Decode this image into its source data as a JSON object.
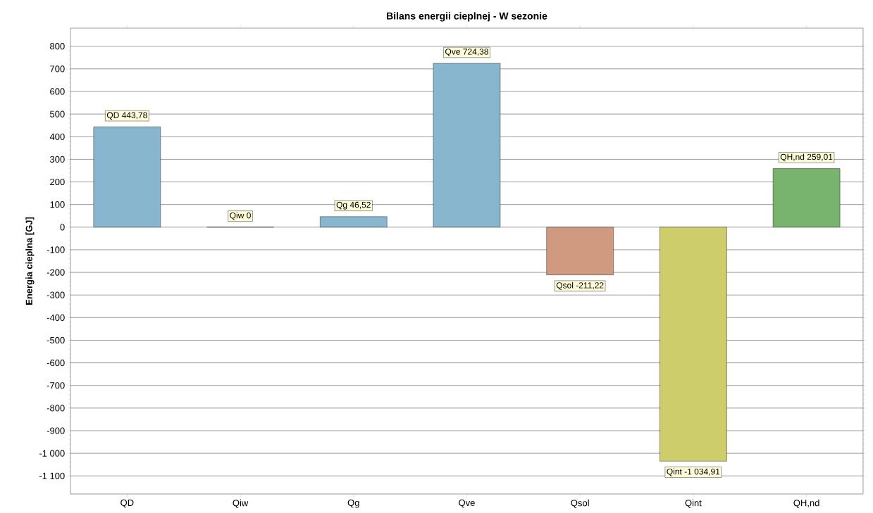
{
  "chart_data": {
    "type": "bar",
    "title": "Bilans energii cieplnej - W sezonie",
    "ylabel": "Energia cieplna [GJ]",
    "categories": [
      "QD",
      "Qiw",
      "Qg",
      "Qve",
      "Qsol",
      "Qint",
      "QH,nd"
    ],
    "values": [
      443.78,
      0,
      46.52,
      724.38,
      -211.22,
      -1034.91,
      259.01
    ],
    "colors": [
      "#88b6cf",
      "#88b6cf",
      "#88b6cf",
      "#88b6cf",
      "#cf9a80",
      "#cdcd6c",
      "#78b46e"
    ],
    "value_labels": [
      "QD 443,78",
      "Qiw 0",
      "Qg 46,52",
      "Qve 724,38",
      "Qsol -211,22",
      "Qint -1 034,91",
      "QH,nd 259,01"
    ],
    "ylim": [
      -1180,
      880
    ],
    "yticks": [
      {
        "value": -1100,
        "label": "-1 100"
      },
      {
        "value": -1000,
        "label": "-1 000"
      },
      -900,
      -800,
      -700,
      -600,
      -500,
      -400,
      -300,
      -200,
      -100,
      0,
      100,
      200,
      300,
      400,
      500,
      600,
      700,
      800
    ],
    "grid": "y"
  }
}
